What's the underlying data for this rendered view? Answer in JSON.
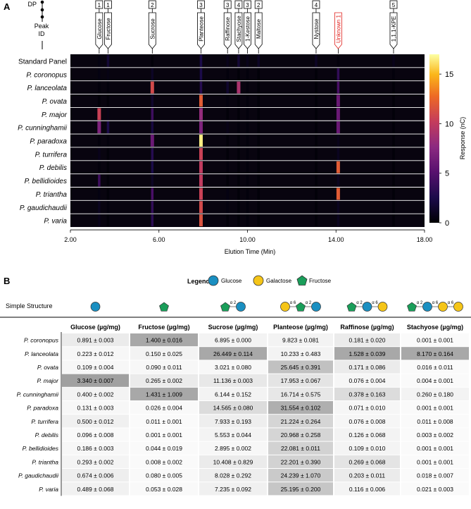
{
  "panel_a_label": "A",
  "panel_b_label": "B",
  "dp_label": "DP",
  "peak_id_label": [
    "Peak",
    "ID"
  ],
  "colors": {
    "glucose": "#1a8fc1",
    "galactose": "#f5c518",
    "fructose": "#1a9e5a",
    "unknown": "#e0201c"
  },
  "chart_data": {
    "type": "heatmap",
    "title": "",
    "xlabel": "Elution Time (Min)",
    "ylabel": "",
    "xlim": [
      2.0,
      18.0
    ],
    "xticks": [
      "2.00",
      "6.00",
      "10.00",
      "14.00",
      "18.00"
    ],
    "colorbar": {
      "label": "Response (nC)",
      "range": [
        0,
        17
      ],
      "ticks": [
        "0",
        "5",
        "10",
        "15"
      ]
    },
    "rows": [
      "Standard Panel",
      "P. coronopus",
      "P. lanceolata",
      "P. ovata",
      "P. major",
      "P. cunninghamii",
      "P. paradoxa",
      "P. turrifera",
      "P. debilis",
      "P. bellidioides",
      "P. triantha",
      "P. gaudichaudii",
      "P. varia"
    ],
    "peaks": [
      {
        "name": "Glucose",
        "dp": "1",
        "time": 3.3
      },
      {
        "name": "Fructose",
        "dp": "1",
        "time": 3.7
      },
      {
        "name": "Sucrose",
        "dp": "2",
        "time": 5.7
      },
      {
        "name": "Planteose",
        "dp": "3",
        "time": 7.9
      },
      {
        "name": "Raffinose",
        "dp": "3",
        "time": 9.1
      },
      {
        "name": "Stachyose",
        "dp": "4",
        "time": 9.6
      },
      {
        "name": "1-Kestose",
        "dp": "3",
        "time": 10.0
      },
      {
        "name": "Maltose",
        "dp": "2",
        "time": 10.5
      },
      {
        "name": "Nystose",
        "dp": "4",
        "time": 13.1
      },
      {
        "name": "Unknown 1",
        "dp": "",
        "time": 14.1
      },
      {
        "name": "1,1,1-KPE",
        "dp": "5",
        "time": 16.6
      }
    ],
    "intensities": [
      [
        0.5,
        1.8,
        0.2,
        2.5,
        0.8,
        1.8,
        0.8,
        1.2,
        1.2,
        0.3,
        0.8
      ],
      [
        0.5,
        0.6,
        1.2,
        2.5,
        0.3,
        0.2,
        0.3,
        0.2,
        0.2,
        3.5,
        0.3
      ],
      [
        0.3,
        0.3,
        11.0,
        3.0,
        1.5,
        9.0,
        0.3,
        0.2,
        0.2,
        4.5,
        0.2
      ],
      [
        0.2,
        0.2,
        1.5,
        12.0,
        0.4,
        0.2,
        0.3,
        0.2,
        0.2,
        6.0,
        0.2
      ],
      [
        10.5,
        0.6,
        4.0,
        8.0,
        0.2,
        0.2,
        0.3,
        0.2,
        0.2,
        6.0,
        0.2
      ],
      [
        7.0,
        2.5,
        2.2,
        7.0,
        0.7,
        0.3,
        0.3,
        0.2,
        0.2,
        6.0,
        0.2
      ],
      [
        0.3,
        0.3,
        6.0,
        16.5,
        0.2,
        0.2,
        0.3,
        0.2,
        0.2,
        0.8,
        0.2
      ],
      [
        0.8,
        0.2,
        3.0,
        10.5,
        0.2,
        0.2,
        0.3,
        0.2,
        0.2,
        1.0,
        0.2
      ],
      [
        0.3,
        0.2,
        2.5,
        10.0,
        0.3,
        0.2,
        0.3,
        0.2,
        0.2,
        12.0,
        0.2
      ],
      [
        4.0,
        0.2,
        1.2,
        10.0,
        0.2,
        0.2,
        0.3,
        0.2,
        0.2,
        1.0,
        0.2
      ],
      [
        0.5,
        0.2,
        4.5,
        10.5,
        0.5,
        0.2,
        0.3,
        0.2,
        0.2,
        12.0,
        0.2
      ],
      [
        1.0,
        0.3,
        3.5,
        11.0,
        0.4,
        0.2,
        0.3,
        0.2,
        0.2,
        1.0,
        0.2
      ],
      [
        0.8,
        0.2,
        3.2,
        11.5,
        0.2,
        0.2,
        0.3,
        0.2,
        0.2,
        1.0,
        0.2
      ]
    ]
  },
  "legend": {
    "title": "Legend",
    "items": [
      {
        "name": "Glucose",
        "shape": "circle",
        "color": "#1a8fc1"
      },
      {
        "name": "Galactose",
        "shape": "circle",
        "color": "#f5c518"
      },
      {
        "name": "Fructose",
        "shape": "pentagon",
        "color": "#1a9e5a"
      }
    ]
  },
  "structure_row_label": "Simple Structure",
  "structures": [
    {
      "units": [
        "G"
      ],
      "bonds": []
    },
    {
      "units": [
        "F"
      ],
      "bonds": []
    },
    {
      "units": [
        "F",
        "G"
      ],
      "bonds": [
        "α 2"
      ]
    },
    {
      "units": [
        "Ga",
        "F",
        "G"
      ],
      "bonds": [
        "α 6",
        "α 2"
      ]
    },
    {
      "units": [
        "F",
        "G",
        "Ga"
      ],
      "bonds": [
        "α 2",
        "α 6"
      ]
    },
    {
      "units": [
        "F",
        "G",
        "Ga",
        "Ga"
      ],
      "bonds": [
        "α 2",
        "α 6",
        "α 6"
      ]
    }
  ],
  "table": {
    "columns": [
      "Glucose (µg/mg)",
      "Fructose (µg/mg)",
      "Sucrose (µg/mg)",
      "Planteose (µg/mg)",
      "Raffinose (µg/mg)",
      "Stachyose (µg/mg)"
    ],
    "rows": [
      {
        "species": "P. coronopus",
        "values": [
          "0.891 ± 0.003",
          "1.400 ± 0.016",
          "6.895 ± 0.000",
          "9.823 ± 0.081",
          "0.181 ± 0.020",
          "0.001 ± 0.001"
        ],
        "shade": [
          0.1,
          0.55,
          0.05,
          0.05,
          0.1,
          0.0
        ]
      },
      {
        "species": "P. lanceolata",
        "values": [
          "0.223 ± 0.012",
          "0.150 ± 0.025",
          "26.449 ± 0.114",
          "10.233 ± 0.483",
          "1.528 ± 0.039",
          "8.170 ± 0.164"
        ],
        "shade": [
          0.02,
          0.05,
          0.55,
          0.05,
          0.55,
          0.55
        ]
      },
      {
        "species": "P. ovata",
        "values": [
          "0.109 ± 0.004",
          "0.090 ± 0.011",
          "3.021 ± 0.080",
          "25.645 ± 0.391",
          "0.171 ± 0.086",
          "0.016 ± 0.011"
        ],
        "shade": [
          0.02,
          0.02,
          0.02,
          0.38,
          0.1,
          0.0
        ]
      },
      {
        "species": "P. major",
        "values": [
          "3.340 ± 0.007",
          "0.265 ± 0.002",
          "11.136 ± 0.003",
          "17.953 ± 0.067",
          "0.076 ± 0.004",
          "0.004 ± 0.001"
        ],
        "shade": [
          0.6,
          0.1,
          0.12,
          0.15,
          0.03,
          0.0
        ]
      },
      {
        "species": "P. cunninghamii",
        "values": [
          "0.400 ± 0.002",
          "1.431 ± 1.009",
          "6.144 ± 0.152",
          "16.714 ± 0.575",
          "0.378 ± 0.163",
          "0.260 ± 0.180"
        ],
        "shade": [
          0.05,
          0.55,
          0.05,
          0.13,
          0.2,
          0.05
        ]
      },
      {
        "species": "P. paradoxa",
        "values": [
          "0.131 ± 0.003",
          "0.026 ± 0.004",
          "14.565 ± 0.080",
          "31.554 ± 0.102",
          "0.071 ± 0.010",
          "0.001 ± 0.001"
        ],
        "shade": [
          0.02,
          0.01,
          0.2,
          0.5,
          0.03,
          0.0
        ]
      },
      {
        "species": "P. turrifera",
        "values": [
          "0.500 ± 0.012",
          "0.011 ± 0.001",
          "7.933 ± 0.193",
          "21.224 ± 0.264",
          "0.076 ± 0.008",
          "0.011 ± 0.008"
        ],
        "shade": [
          0.07,
          0.0,
          0.08,
          0.25,
          0.03,
          0.0
        ]
      },
      {
        "species": "P. debilis",
        "values": [
          "0.096 ± 0.008",
          "0.001 ± 0.001",
          "5.553 ± 0.044",
          "20.968 ± 0.258",
          "0.126 ± 0.068",
          "0.003 ± 0.002"
        ],
        "shade": [
          0.01,
          0.0,
          0.05,
          0.25,
          0.05,
          0.0
        ]
      },
      {
        "species": "P. bellidioides",
        "values": [
          "0.186 ± 0.003",
          "0.044 ± 0.019",
          "2.895 ± 0.002",
          "22.081 ± 0.011",
          "0.109 ± 0.010",
          "0.001 ± 0.001"
        ],
        "shade": [
          0.02,
          0.0,
          0.02,
          0.27,
          0.04,
          0.0
        ]
      },
      {
        "species": "P. triantha",
        "values": [
          "0.293 ± 0.002",
          "0.008 ± 0.002",
          "10.408 ± 0.829",
          "22.201 ± 0.390",
          "0.269 ± 0.068",
          "0.001 ± 0.001"
        ],
        "shade": [
          0.04,
          0.0,
          0.1,
          0.27,
          0.15,
          0.0
        ]
      },
      {
        "species": "P. gaudichaudii",
        "values": [
          "0.674 ± 0.006",
          "0.080 ± 0.005",
          "8.028 ± 0.292",
          "24.239 ± 1.070",
          "0.203 ± 0.011",
          "0.018 ± 0.007"
        ],
        "shade": [
          0.08,
          0.01,
          0.08,
          0.32,
          0.1,
          0.0
        ]
      },
      {
        "species": "P. varia",
        "values": [
          "0.489 ± 0.068",
          "0.053 ± 0.028",
          "7.235 ± 0.092",
          "25.195 ± 0.200",
          "0.116 ± 0.006",
          "0.021 ± 0.003"
        ],
        "shade": [
          0.06,
          0.01,
          0.07,
          0.35,
          0.04,
          0.0
        ]
      }
    ]
  }
}
